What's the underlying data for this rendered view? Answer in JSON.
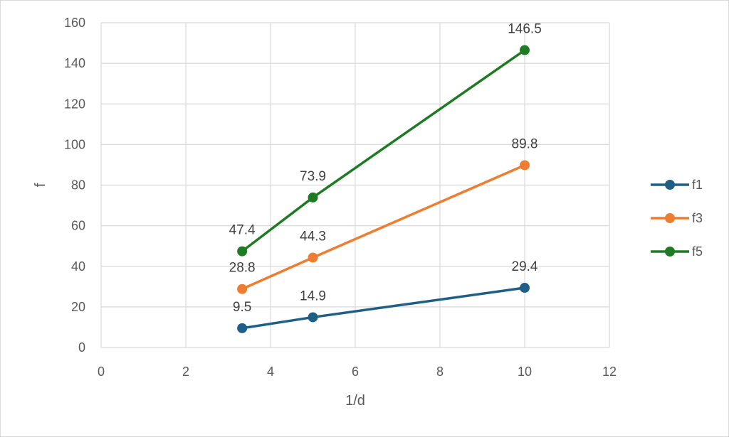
{
  "chart_data": {
    "type": "scatter",
    "xlabel": "1/d",
    "ylabel": "f",
    "xlim": [
      0,
      12
    ],
    "ylim": [
      0,
      160
    ],
    "xticks": [
      0,
      2,
      4,
      6,
      8,
      10,
      12
    ],
    "yticks": [
      0,
      20,
      40,
      60,
      80,
      100,
      120,
      140,
      160
    ],
    "grid": true,
    "legend_position": "right",
    "series": [
      {
        "name": "f1",
        "color": "#1f5f86",
        "x": [
          3.33,
          5,
          10
        ],
        "y": [
          9.5,
          14.9,
          29.4
        ],
        "labels": [
          "9.5",
          "14.9",
          "29.4"
        ]
      },
      {
        "name": "f3",
        "color": "#ed7d31",
        "x": [
          3.33,
          5,
          10
        ],
        "y": [
          28.8,
          44.3,
          89.8
        ],
        "labels": [
          "28.8",
          "44.3",
          "89.8"
        ]
      },
      {
        "name": "f5",
        "color": "#1e7b24",
        "x": [
          3.33,
          5,
          10
        ],
        "y": [
          47.4,
          73.9,
          146.5
        ],
        "labels": [
          "47.4",
          "73.9",
          "146.5"
        ]
      }
    ]
  }
}
